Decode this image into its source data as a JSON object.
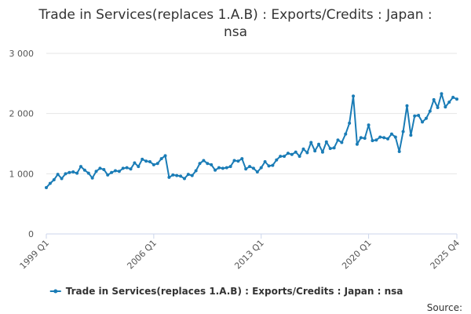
{
  "chart_data": {
    "type": "line",
    "title_line1": "Trade in Services(replaces 1.A.B) : Exports/Credits : Japan :",
    "title_line2": "nsa",
    "ylim": [
      0,
      3000
    ],
    "yticks": [
      0,
      1000,
      2000,
      3000
    ],
    "ytick_labels": [
      "0",
      "1 000",
      "2 000",
      "3 000"
    ],
    "xtick_labels": [
      {
        "label": "1999 Q1",
        "index": 0
      },
      {
        "label": "2006 Q1",
        "index": 28
      },
      {
        "label": "2013 Q1",
        "index": 56
      },
      {
        "label": "2020 Q1",
        "index": 84
      },
      {
        "label": "2025 Q4",
        "index": 107
      }
    ],
    "grid": true,
    "legend_position": "bottom",
    "series": [
      {
        "name": "Trade in Services(replaces 1.A.B) : Exports/Credits : Japan : nsa",
        "color": "#1a7cb6",
        "values": [
          770,
          840,
          900,
          990,
          920,
          1000,
          1020,
          1030,
          1010,
          1120,
          1060,
          1010,
          930,
          1040,
          1090,
          1070,
          980,
          1020,
          1050,
          1040,
          1090,
          1100,
          1080,
          1180,
          1120,
          1240,
          1210,
          1200,
          1150,
          1170,
          1250,
          1300,
          940,
          980,
          970,
          960,
          920,
          990,
          970,
          1050,
          1170,
          1220,
          1170,
          1150,
          1060,
          1100,
          1090,
          1100,
          1120,
          1220,
          1210,
          1250,
          1080,
          1120,
          1090,
          1030,
          1100,
          1200,
          1130,
          1140,
          1230,
          1290,
          1290,
          1340,
          1320,
          1360,
          1290,
          1410,
          1350,
          1520,
          1380,
          1490,
          1360,
          1530,
          1420,
          1430,
          1560,
          1520,
          1660,
          1840,
          2290,
          1490,
          1600,
          1590,
          1810,
          1550,
          1560,
          1610,
          1600,
          1580,
          1660,
          1610,
          1370,
          1700,
          2130,
          1640,
          1960,
          1970,
          1860,
          1920,
          2040,
          2230,
          2100,
          2330,
          2110,
          2190,
          2270,
          2240
        ]
      }
    ],
    "source_label": "Source:"
  }
}
